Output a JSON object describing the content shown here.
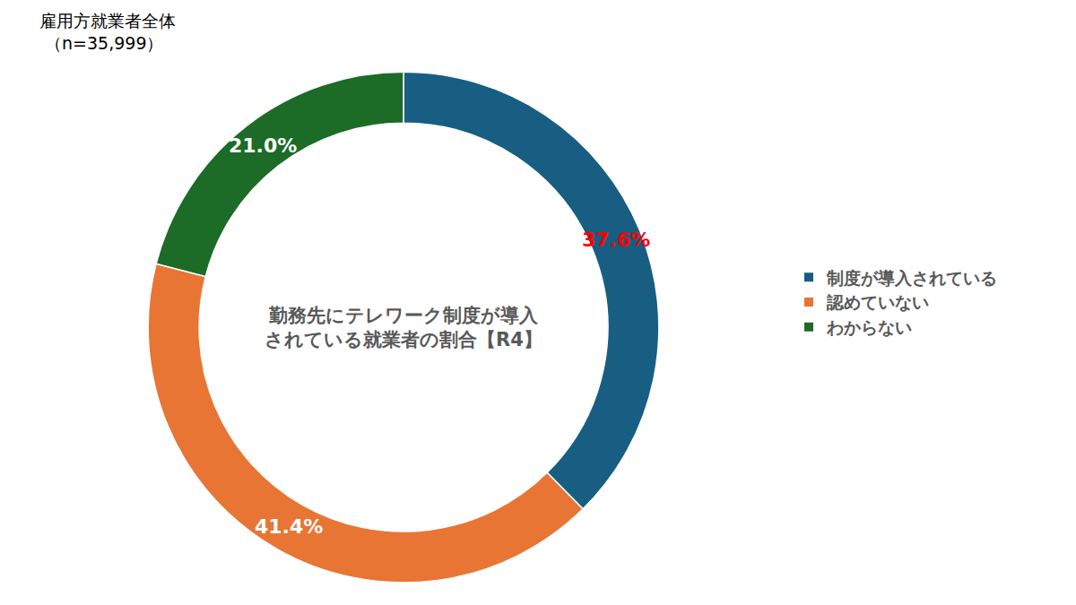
{
  "chart_data": {
    "type": "pie",
    "title": "雇用方就業者全体",
    "subtitle": "（n=35,999）",
    "center_text": [
      "勤務先にテレワーク制度が導入",
      "されている就業者の割合【R4】"
    ],
    "categories": [
      "制度が導入されている",
      "認めていない",
      "わからない"
    ],
    "values": [
      37.6,
      41.4,
      21.0
    ],
    "value_labels": [
      "37.6%",
      "41.4%",
      "21.0%"
    ],
    "colors": [
      "#175e82",
      "#e87533",
      "#1c6b27"
    ],
    "data_labels": true,
    "legend": "right"
  }
}
